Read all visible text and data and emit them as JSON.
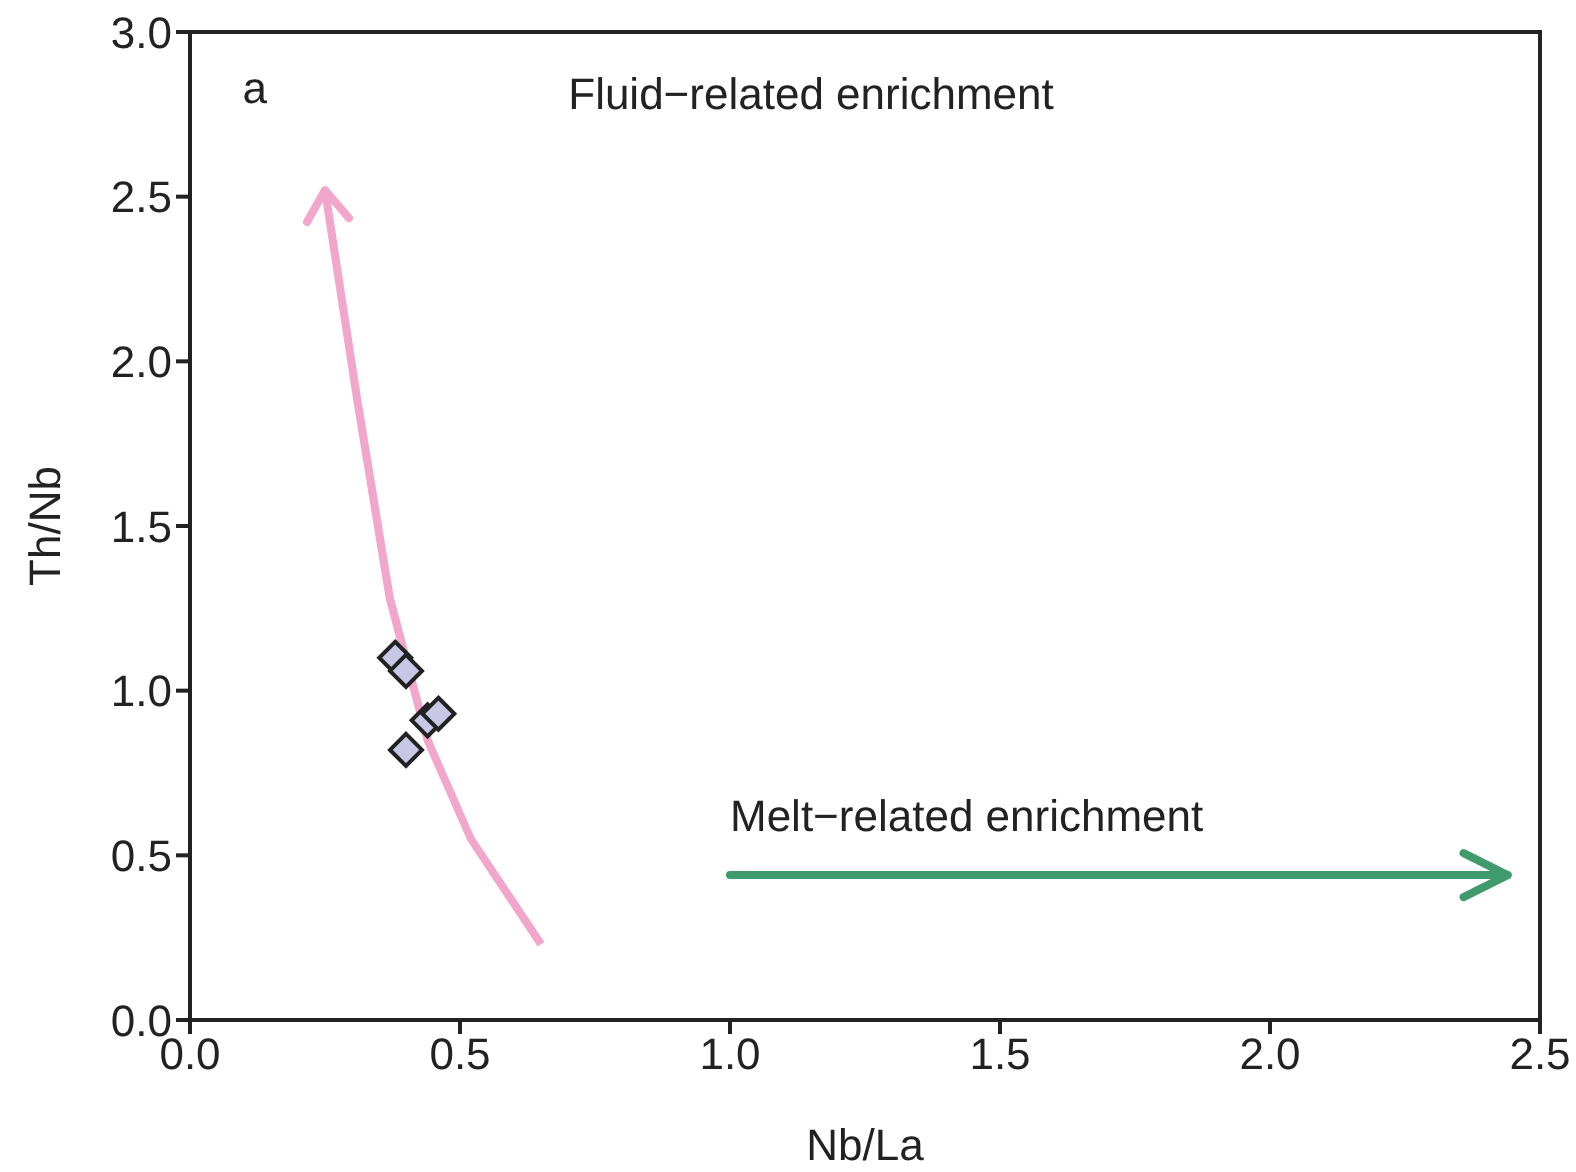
{
  "chart_data": {
    "type": "scatter",
    "xlabel": "Nb/La",
    "ylabel": "Th/Nb",
    "x": [
      0.38,
      0.4,
      0.44,
      0.46,
      0.4
    ],
    "series": [
      {
        "color": "#c8c8e6",
        "values": [
          1.1,
          1.06,
          0.91,
          0.93,
          0.82
        ]
      }
    ],
    "marker": "diamond",
    "xlim": [
      0,
      2.5
    ],
    "xticks": [
      {
        "value": 0,
        "label": "0.0"
      },
      0.5,
      {
        "value": 1,
        "label": "1.0"
      },
      1.5,
      {
        "value": 2,
        "label": "2.0"
      },
      2.5
    ],
    "ylim": [
      0,
      3
    ],
    "yticks": [
      {
        "value": 0,
        "label": "0.0"
      },
      0.5,
      {
        "value": 1,
        "label": "1.0"
      },
      1.5,
      {
        "value": 2,
        "label": "2.0"
      },
      2.5,
      {
        "value": 3,
        "label": "3.0"
      }
    ],
    "annotations": [
      "a",
      "Fluid−related enrichment",
      "Melt−related enrichment"
    ],
    "grid": false,
    "legend": false
  }
}
